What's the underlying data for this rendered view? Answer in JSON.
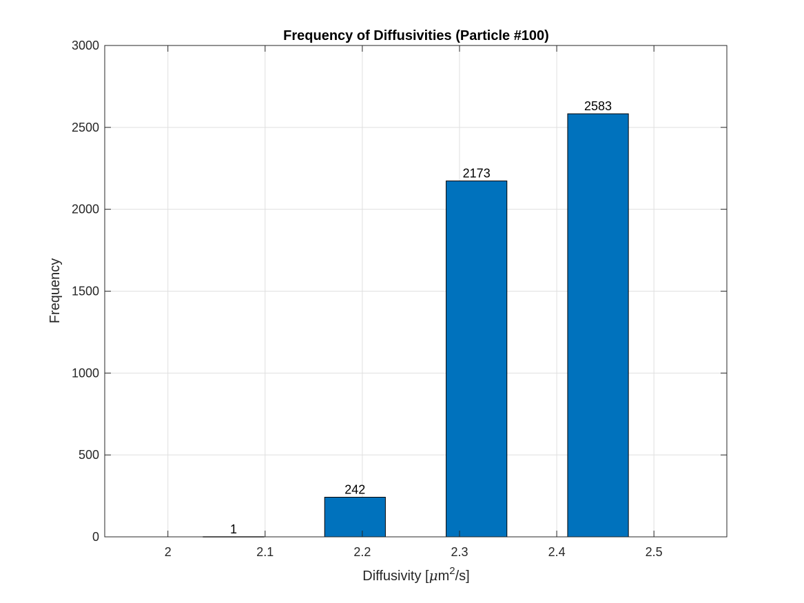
{
  "chart_data": {
    "type": "bar",
    "title": "Frequency of Diffusivities (Particle #100)",
    "xlabel": {
      "prefix": "Diffusivity [",
      "mu": "μ",
      "unit": "m",
      "superscript": "2",
      "suffix": "/s]"
    },
    "ylabel": "Frequency",
    "xlim": [
      1.935,
      2.575
    ],
    "ylim": [
      0,
      3000
    ],
    "xticks": [
      2.0,
      2.1,
      2.2,
      2.3,
      2.4,
      2.5
    ],
    "xtick_labels": [
      "2",
      "2.1",
      "2.2",
      "2.3",
      "2.4",
      "2.5"
    ],
    "yticks": [
      0,
      500,
      1000,
      1500,
      2000,
      2500,
      3000
    ],
    "ytick_labels": [
      "0",
      "500",
      "1000",
      "1500",
      "2000",
      "2500",
      "3000"
    ],
    "bar_width": 0.0625,
    "bars": [
      {
        "x": 2.0675,
        "value": 1,
        "label": "1"
      },
      {
        "x": 2.1925,
        "value": 242,
        "label": "242"
      },
      {
        "x": 2.3175,
        "value": 2173,
        "label": "2173"
      },
      {
        "x": 2.4425,
        "value": 2583,
        "label": "2583"
      }
    ],
    "grid": true,
    "bar_color": "#0072BD",
    "bar_edge_color": "#000000"
  }
}
